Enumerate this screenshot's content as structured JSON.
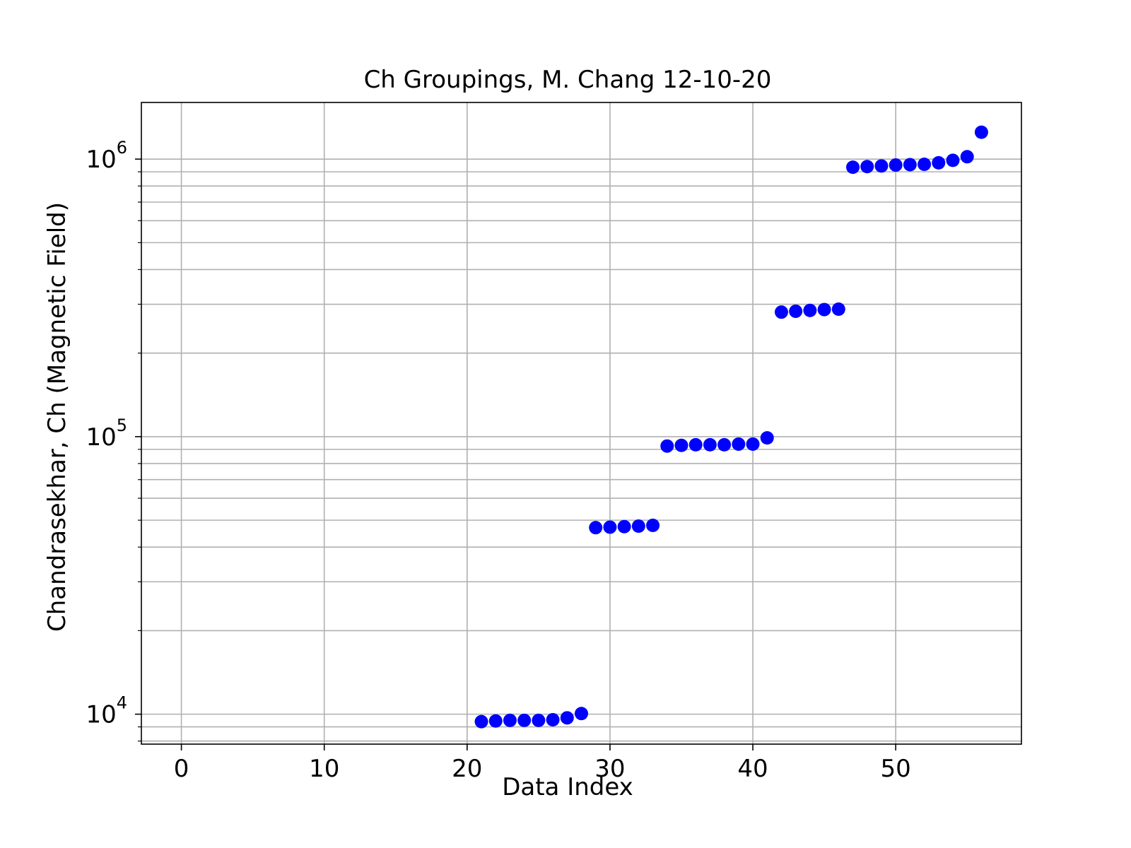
{
  "chart_data": {
    "type": "scatter",
    "title": "Ch Groupings, M. Chang 12-10-20",
    "xlabel": "Data Index",
    "ylabel": "Chandrasekhar, Ch (Magnetic Field)",
    "xlim": [
      -2.8,
      58.8
    ],
    "ylim": [
      7800,
      1600000
    ],
    "yscale": "log",
    "grid": "both",
    "marker_color": "#0000ff",
    "x_ticks": [
      0,
      10,
      20,
      30,
      40,
      50
    ],
    "y_ticks": [
      {
        "base": "10",
        "exp": "4",
        "value": 10000
      },
      {
        "base": "10",
        "exp": "5",
        "value": 100000
      },
      {
        "base": "10",
        "exp": "6",
        "value": 1000000
      }
    ],
    "points": [
      {
        "x": 21,
        "y": 9400
      },
      {
        "x": 22,
        "y": 9450
      },
      {
        "x": 23,
        "y": 9500
      },
      {
        "x": 24,
        "y": 9500
      },
      {
        "x": 25,
        "y": 9500
      },
      {
        "x": 26,
        "y": 9550
      },
      {
        "x": 27,
        "y": 9700
      },
      {
        "x": 28,
        "y": 10050
      },
      {
        "x": 29,
        "y": 47000
      },
      {
        "x": 30,
        "y": 47200
      },
      {
        "x": 31,
        "y": 47400
      },
      {
        "x": 32,
        "y": 47600
      },
      {
        "x": 33,
        "y": 47900
      },
      {
        "x": 34,
        "y": 92500
      },
      {
        "x": 35,
        "y": 93000
      },
      {
        "x": 36,
        "y": 93500
      },
      {
        "x": 37,
        "y": 93500
      },
      {
        "x": 38,
        "y": 93500
      },
      {
        "x": 39,
        "y": 94000
      },
      {
        "x": 40,
        "y": 94000
      },
      {
        "x": 41,
        "y": 99000
      },
      {
        "x": 42,
        "y": 281000
      },
      {
        "x": 43,
        "y": 283000
      },
      {
        "x": 44,
        "y": 285000
      },
      {
        "x": 45,
        "y": 287000
      },
      {
        "x": 46,
        "y": 288000
      },
      {
        "x": 47,
        "y": 935000
      },
      {
        "x": 48,
        "y": 940000
      },
      {
        "x": 49,
        "y": 945000
      },
      {
        "x": 50,
        "y": 952000
      },
      {
        "x": 51,
        "y": 955000
      },
      {
        "x": 52,
        "y": 958000
      },
      {
        "x": 53,
        "y": 970000
      },
      {
        "x": 54,
        "y": 990000
      },
      {
        "x": 55,
        "y": 1020000
      },
      {
        "x": 56,
        "y": 1250000
      }
    ]
  }
}
